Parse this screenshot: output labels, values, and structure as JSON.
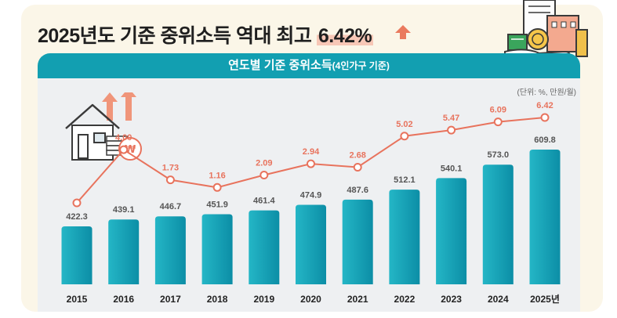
{
  "headline": {
    "text": "2025년도 기준 중위소득 역대 최고 ",
    "highlight": "6.42%",
    "arrow_color": "#ea7a5e"
  },
  "banner": {
    "main": "연도별 기준 중위소득",
    "sub": "(4인가구 기준)",
    "color": "#129fb1"
  },
  "unit_note": "(단위: %, 만원/월)",
  "icons": {
    "headline_arrow": "up-arrow-icon",
    "top_right": "buildings-coin-hand-icon",
    "left": "house-coins-won-icon"
  },
  "colors": {
    "bar_start": "#24b6c6",
    "bar_end": "#0c8ea6",
    "line": "#e8735d",
    "rate_label": "#e8735d",
    "value_label": "#555555",
    "axis_label": "#222222"
  },
  "chart_data": {
    "type": "bar+line",
    "categories": [
      "2015",
      "2016",
      "2017",
      "2018",
      "2019",
      "2020",
      "2021",
      "2022",
      "2023",
      "2024",
      "2025년"
    ],
    "series": [
      {
        "type": "bar",
        "values": [
          422.3,
          439.1,
          446.7,
          451.9,
          461.4,
          474.9,
          487.6,
          512.1,
          540.1,
          573.0,
          609.8
        ],
        "labels": [
          "422.3",
          "439.1",
          "446.7",
          "451.9",
          "461.4",
          "474.9",
          "487.6",
          "512.1",
          "540.1",
          "573.0",
          "609.8"
        ]
      },
      {
        "type": "line",
        "values": [
          null,
          4.0,
          1.73,
          1.16,
          2.09,
          2.94,
          2.68,
          5.02,
          5.47,
          6.09,
          6.42
        ],
        "labels": [
          "",
          "4.00",
          "1.73",
          "1.16",
          "2.09",
          "2.94",
          "2.68",
          "5.02",
          "5.47",
          "6.09",
          "6.42"
        ]
      }
    ],
    "grid": false,
    "legend": "none"
  }
}
